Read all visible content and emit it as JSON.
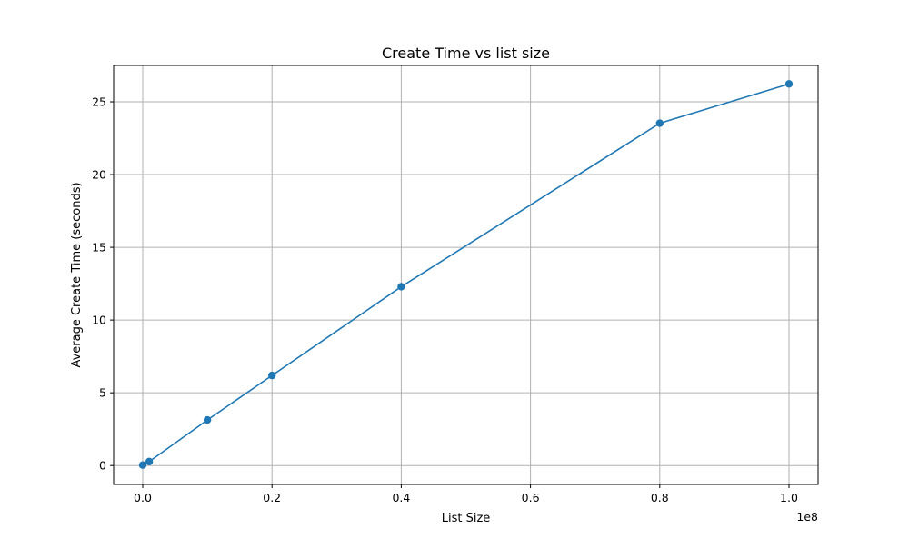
{
  "chart_data": {
    "type": "line",
    "title": "Create Time vs list size",
    "xlabel": "List Size",
    "ylabel": "Average Create Time (seconds)",
    "x_offset_label": "1e8",
    "x": [
      0.0,
      0.01,
      0.1,
      0.2,
      0.4,
      0.8,
      1.0
    ],
    "series": [
      {
        "values": [
          0.03,
          0.27,
          3.13,
          6.19,
          12.29,
          23.53,
          26.23
        ],
        "color": "#1f77b4",
        "marker": "circle"
      }
    ],
    "xlim": [
      -0.045,
      1.045
    ],
    "ylim": [
      -1.3,
      27.5
    ],
    "xticks": [
      0.0,
      0.2,
      0.4,
      0.6,
      0.8,
      1.0
    ],
    "xtick_labels": [
      "0.0",
      "0.2",
      "0.4",
      "0.6",
      "0.8",
      "1.0"
    ],
    "yticks": [
      0,
      5,
      10,
      15,
      20,
      25
    ],
    "ytick_labels": [
      "0",
      "5",
      "10",
      "15",
      "20",
      "25"
    ],
    "grid": true
  }
}
